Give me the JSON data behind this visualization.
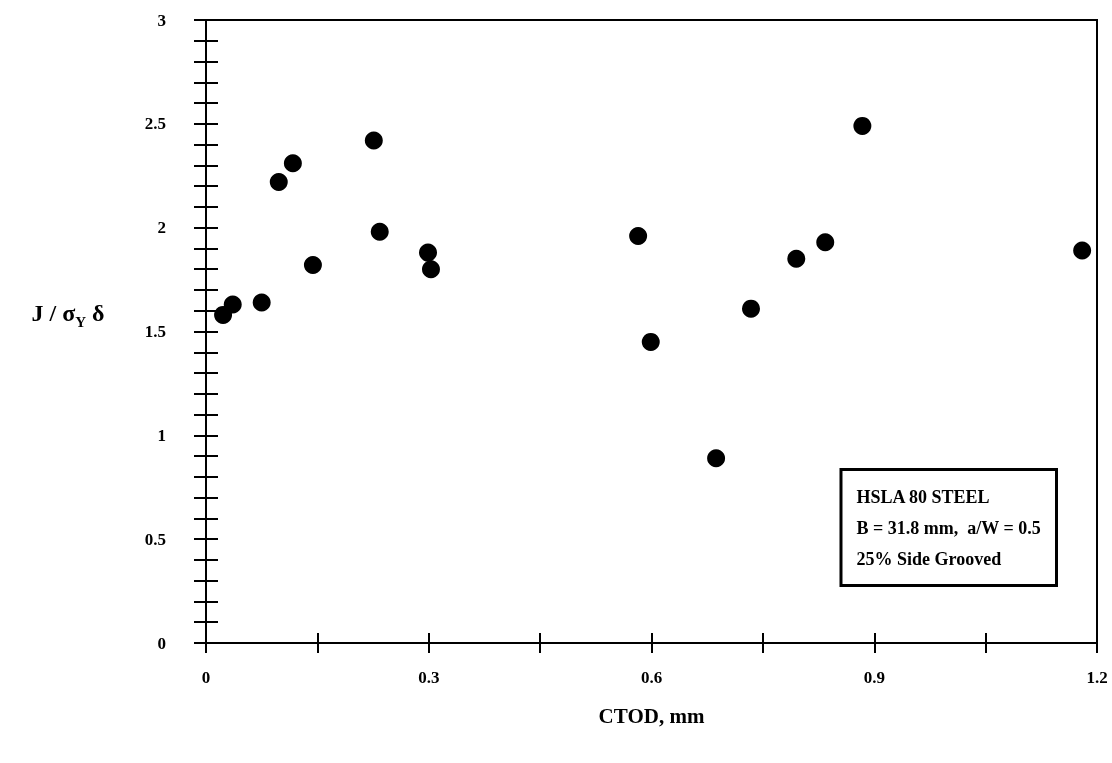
{
  "chart_data": {
    "type": "scatter",
    "xlabel": "CTOD, mm",
    "ylabel": "J / σ$_{Y}$ δ",
    "x": [
      0.023,
      0.036,
      0.075,
      0.098,
      0.117,
      0.144,
      0.226,
      0.234,
      0.299,
      0.303,
      0.582,
      0.599,
      0.687,
      0.734,
      0.795,
      0.834,
      0.884,
      1.18
    ],
    "values": [
      1.58,
      1.63,
      1.64,
      2.22,
      2.31,
      1.82,
      2.42,
      1.98,
      1.88,
      1.8,
      1.96,
      1.45,
      0.89,
      1.61,
      1.85,
      1.93,
      2.49,
      1.89
    ],
    "color": "#000000",
    "marker": "circle",
    "xlim": [
      0,
      1.2
    ],
    "xticks": [
      0,
      0.3,
      0.6,
      0.9,
      1.2
    ],
    "ylim": [
      0,
      3
    ],
    "yticks": [
      0,
      0.5,
      1,
      1.5,
      2,
      2.5,
      3
    ],
    "grid": false,
    "annotations": [
      "HSLA 80 STEEL",
      "B = 31.8 mm,  a/W = 0.5",
      "25% Side Grooved"
    ]
  }
}
